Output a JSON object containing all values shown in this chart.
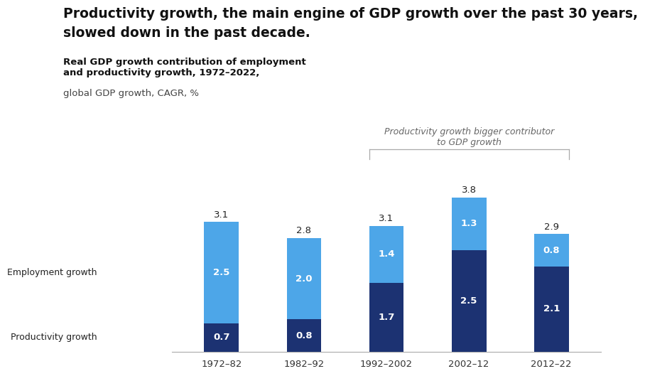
{
  "title_line1": "Productivity growth, the main engine of GDP growth over the past 30 years,",
  "title_line2": "slowed down in the past decade.",
  "subtitle_bold": "Real GDP growth contribution of employment\nand productivity growth, 1972–2022,",
  "subtitle_light": "global GDP growth, CAGR, %",
  "annotation_text": "Productivity growth bigger contributor\nto GDP growth",
  "categories": [
    "1972–82",
    "1982–92",
    "1992–2002",
    "2002–12",
    "2012–22"
  ],
  "employment_values": [
    2.5,
    2.0,
    1.4,
    1.3,
    0.8
  ],
  "productivity_values": [
    0.7,
    0.8,
    1.7,
    2.5,
    2.1
  ],
  "totals": [
    3.1,
    2.8,
    3.1,
    3.8,
    2.9
  ],
  "employment_color": "#4da6e8",
  "productivity_color": "#1c3272",
  "background_color": "#ffffff",
  "bar_width": 0.42,
  "ylim": [
    0,
    4.6
  ],
  "title_fontsize": 13.5,
  "subtitle_bold_fontsize": 9.5,
  "subtitle_light_fontsize": 9.5,
  "bar_label_fontsize": 9.5,
  "axis_fontsize": 9.5,
  "side_label_fontsize": 9,
  "annotation_fontsize": 9
}
